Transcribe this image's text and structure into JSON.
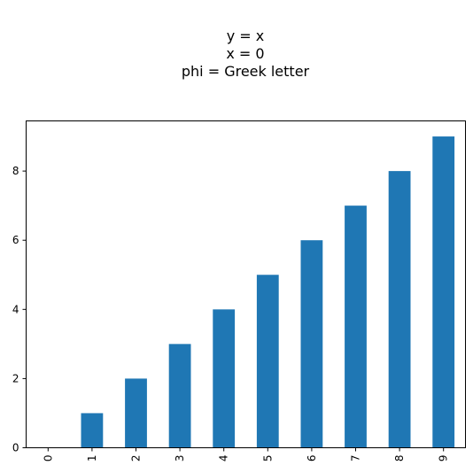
{
  "chart_data": {
    "type": "bar",
    "title_lines": [
      "y = x",
      "x = 0",
      "phi = Greek letter"
    ],
    "categories": [
      "0",
      "1",
      "2",
      "3",
      "4",
      "5",
      "6",
      "7",
      "8",
      "9"
    ],
    "values": [
      0,
      1,
      2,
      3,
      4,
      5,
      6,
      7,
      8,
      9
    ],
    "ylim": [
      0,
      9.45
    ],
    "yticks": [
      "0",
      "2",
      "4",
      "6",
      "8"
    ],
    "xlabel": "",
    "ylabel": "",
    "grid": false,
    "bar_color": "#1f77b4",
    "xtick_rotation": "vertical"
  }
}
